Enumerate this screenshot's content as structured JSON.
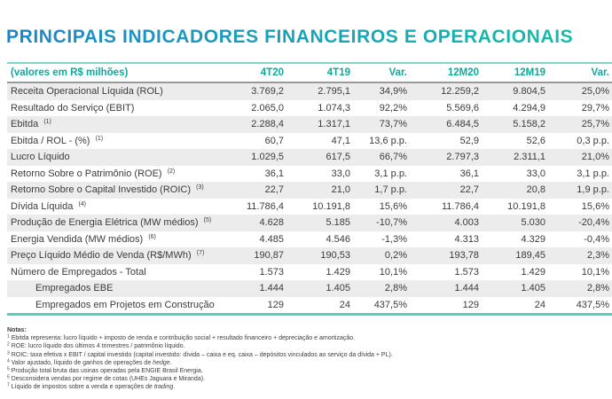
{
  "title": "PRINCIPAIS INDICADORES FINANCEIROS E OPERACIONAIS",
  "colors": {
    "title_gradient_start": "#1e86c7",
    "title_gradient_end": "#13c0a8",
    "header_teal": "#0caa9b",
    "line_teal_top": "#7fd6c9",
    "line_teal_bottom": "#57cdbd",
    "divider_gray": "#9a9a9a",
    "stripe": "#ececec",
    "text": "#3b3b3b"
  },
  "table": {
    "unit_label": "(valores em R$ milhões)",
    "columns": [
      "4T20",
      "4T19",
      "Var.",
      "12M20",
      "12M19",
      "Var."
    ],
    "rows": [
      {
        "label": "Receita Operacional Líquida (ROL)",
        "sup": "",
        "indent": false,
        "values": [
          "3.769,2",
          "2.795,1",
          "34,9%",
          "12.259,2",
          "9.804,5",
          "25,0%"
        ]
      },
      {
        "label": "Resultado do Serviço (EBIT)",
        "sup": "",
        "indent": false,
        "values": [
          "2.065,0",
          "1.074,3",
          "92,2%",
          "5.569,6",
          "4.294,9",
          "29,7%"
        ]
      },
      {
        "label": "Ebitda",
        "sup": "(1)",
        "indent": false,
        "values": [
          "2.288,4",
          "1.317,1",
          "73,7%",
          "6.484,5",
          "5.158,2",
          "25,7%"
        ]
      },
      {
        "label": "Ebitda / ROL - (%)",
        "sup": "(1)",
        "indent": false,
        "values": [
          "60,7",
          "47,1",
          "13,6 p.p.",
          "52,9",
          "52,6",
          "0,3 p.p."
        ]
      },
      {
        "label": "Lucro Líquido",
        "sup": "",
        "indent": false,
        "values": [
          "1.029,5",
          "617,5",
          "66,7%",
          "2.797,3",
          "2.311,1",
          "21,0%"
        ]
      },
      {
        "label": "Retorno Sobre o Patrimônio (ROE)",
        "sup": "(2)",
        "indent": false,
        "values": [
          "36,1",
          "33,0",
          "3,1 p.p.",
          "36,1",
          "33,0",
          "3,1 p.p."
        ]
      },
      {
        "label": "Retorno Sobre o Capital Investido (ROIC)",
        "sup": "(3)",
        "indent": false,
        "values": [
          "22,7",
          "21,0",
          "1,7 p.p.",
          "22,7",
          "20,8",
          "1,9 p.p."
        ]
      },
      {
        "label": "Dívida Líquida",
        "sup": "(4)",
        "indent": false,
        "values": [
          "11.786,4",
          "10.191,8",
          "15,6%",
          "11.786,4",
          "10.191,8",
          "15,6%"
        ]
      },
      {
        "label": "Produção de Energia Elétrica (MW médios)",
        "sup": "(5)",
        "indent": false,
        "values": [
          "4.628",
          "5.185",
          "-10,7%",
          "4.003",
          "5.030",
          "-20,4%"
        ]
      },
      {
        "label": "Energia Vendida (MW médios)",
        "sup": "(6)",
        "indent": false,
        "values": [
          "4.485",
          "4.546",
          "-1,3%",
          "4.313",
          "4.329",
          "-0,4%"
        ]
      },
      {
        "label": "Preço Líquido Médio de Venda (R$/MWh)",
        "sup": "(7)",
        "indent": false,
        "values": [
          "190,87",
          "190,53",
          "0,2%",
          "193,78",
          "189,45",
          "2,3%"
        ]
      },
      {
        "label": "Número de Empregados - Total",
        "sup": "",
        "indent": false,
        "values": [
          "1.573",
          "1.429",
          "10,1%",
          "1.573",
          "1.429",
          "10,1%"
        ]
      },
      {
        "label": "Empregados EBE",
        "sup": "",
        "indent": true,
        "values": [
          "1.444",
          "1.405",
          "2,8%",
          "1.444",
          "1.405",
          "2,8%"
        ]
      },
      {
        "label": "Empregados em Projetos em Construção",
        "sup": "",
        "indent": true,
        "values": [
          "129",
          "24",
          "437,5%",
          "129",
          "24",
          "437,5%"
        ]
      }
    ]
  },
  "notes": {
    "heading": "Notas:",
    "items": [
      {
        "sup": "1",
        "text": "Ebitda representa: lucro líquido + imposto de renda e contribuição social + resultado financeiro + depreciação e amortização.",
        "italic": "",
        "after": ""
      },
      {
        "sup": "2",
        "text": "ROE: lucro líquido dos últimos 4 trimestres / patrimônio líquido.",
        "italic": "",
        "after": ""
      },
      {
        "sup": "3",
        "text": "ROIC: taxa efetiva x EBIT / capital investido (capital investido: dívida – caixa e eq. caixa – depósitos vinculados ao serviço da dívida + PL).",
        "italic": "",
        "after": ""
      },
      {
        "sup": "4",
        "text": "Valor ajustado, líquido de ganhos de operações de ",
        "italic": "hedge",
        "after": "."
      },
      {
        "sup": "5",
        "text": "Produção total bruta das usinas operadas pela ENGIE Brasil Energia.",
        "italic": "",
        "after": ""
      },
      {
        "sup": "6",
        "text": "Desconsidera vendas por regime de cotas (UHEs Jaguara e Miranda).",
        "italic": "",
        "after": ""
      },
      {
        "sup": "7",
        "text": "Líquido de impostos sobre a venda e operações de ",
        "italic": "trading",
        "after": "."
      }
    ]
  }
}
